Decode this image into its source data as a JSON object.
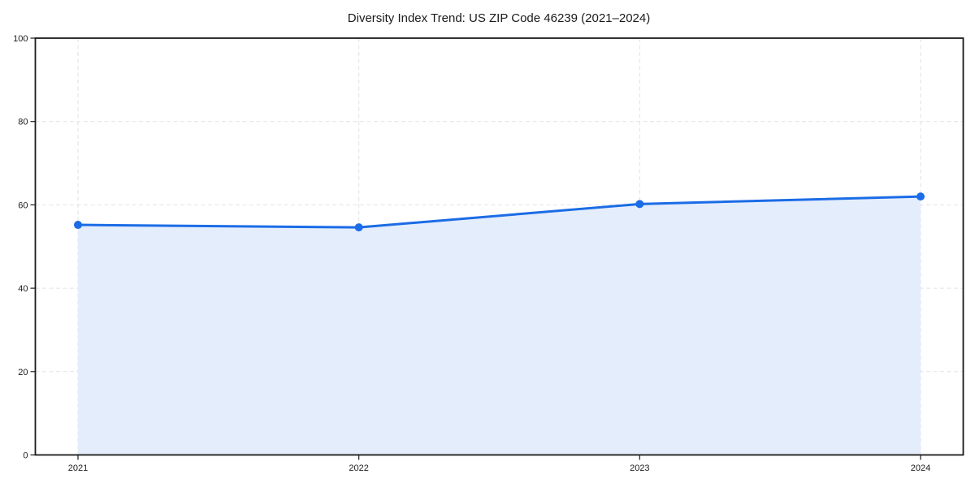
{
  "page": {
    "background": "#ffffff"
  },
  "chart_data": {
    "type": "area",
    "title": "Diversity Index Trend: US ZIP Code 46239 (2021–2024)",
    "categories": [
      "2021",
      "2022",
      "2023",
      "2024"
    ],
    "series": [
      {
        "name": "Diversity Index",
        "values": [
          55.2,
          54.6,
          60.2,
          62.0
        ]
      }
    ],
    "xlabel": "",
    "ylabel": "",
    "ylim": [
      0,
      100
    ],
    "yticks": [
      0,
      20,
      40,
      60,
      80,
      100
    ],
    "grid": true,
    "grid_style": "dashed",
    "legend_position": "none",
    "marker": "circle",
    "colors": {
      "line": "#1b6ce6",
      "marker": "#1b6ce6",
      "fill": "#e4edfb",
      "grid": "#e2e2e2",
      "spine": "#1a1a1a",
      "text": "#1a1a1a",
      "background": "#ffffff"
    }
  }
}
